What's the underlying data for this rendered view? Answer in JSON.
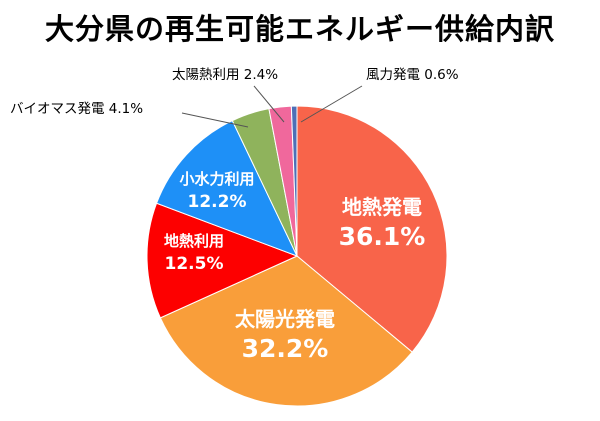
{
  "chart_data": {
    "type": "pie",
    "title": "大分県の再生可能エネルギー供給内訳",
    "slices": [
      {
        "label": "地熱発電",
        "value": 36.1,
        "display": "36.1%",
        "color": "#F8644A"
      },
      {
        "label": "太陽光発電",
        "value": 32.2,
        "display": "32.2%",
        "color": "#F99E3A"
      },
      {
        "label": "地熱利用",
        "value": 12.5,
        "display": "12.5%",
        "color": "#FD0000"
      },
      {
        "label": "小水力利用",
        "value": 12.2,
        "display": "12.2%",
        "color": "#1E90F7"
      },
      {
        "label": "バイオマス発電",
        "value": 4.1,
        "display": "4.1%",
        "color": "#8FB35C"
      },
      {
        "label": "太陽熱利用",
        "value": 2.4,
        "display": "2.4%",
        "color": "#F0689C"
      },
      {
        "label": "風力発電",
        "value": 0.6,
        "display": "0.6%",
        "color": "#4E6FB6"
      }
    ],
    "start": "12 o'clock",
    "direction": "clockwise",
    "legend": "none"
  }
}
